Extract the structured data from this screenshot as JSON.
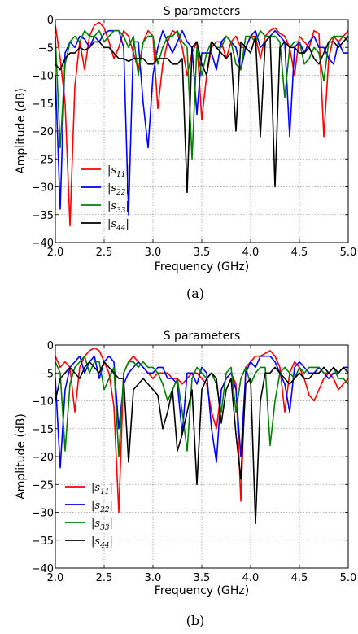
{
  "chart_data": [
    {
      "type": "line",
      "title": "S parameters",
      "xlabel": "Frequency (GHz)",
      "ylabel": "Amplitude (dB)",
      "xlim": [
        2.0,
        5.0
      ],
      "ylim": [
        -40,
        0
      ],
      "xticks": [
        "2.0",
        "2.5",
        "3.0",
        "3.5",
        "4.0",
        "4.5",
        "5.0"
      ],
      "yticks": [
        "0",
        "−5",
        "−10",
        "−15",
        "−20",
        "−25",
        "−30",
        "−35",
        "−40"
      ],
      "grid": true,
      "legend_position": "lower-left",
      "caption": "(a)",
      "series": [
        {
          "name": "|s11|",
          "color": "#ff0000",
          "x": [
            2.0,
            2.05,
            2.1,
            2.15,
            2.2,
            2.25,
            2.3,
            2.35,
            2.4,
            2.45,
            2.5,
            2.55,
            2.6,
            2.65,
            2.7,
            2.75,
            2.8,
            2.85,
            2.9,
            2.95,
            3.0,
            3.05,
            3.1,
            3.15,
            3.2,
            3.25,
            3.3,
            3.35,
            3.4,
            3.45,
            3.5,
            3.55,
            3.6,
            3.65,
            3.7,
            3.75,
            3.8,
            3.85,
            3.9,
            3.95,
            4.0,
            4.05,
            4.1,
            4.15,
            4.2,
            4.25,
            4.3,
            4.35,
            4.4,
            4.45,
            4.5,
            4.55,
            4.6,
            4.65,
            4.7,
            4.75,
            4.8,
            4.85,
            4.9,
            4.95,
            5.0
          ],
          "y": [
            -1,
            -7,
            -15,
            -37,
            -12,
            -4,
            -9,
            -3,
            -1,
            -0.5,
            -1.5,
            -4,
            -7,
            -5,
            -2,
            -3,
            -6,
            -9,
            -4,
            -2,
            -3,
            -16,
            -8,
            -4,
            -2,
            -2.5,
            -5,
            -10,
            -6,
            -4,
            -18,
            -10,
            -5,
            -4,
            -4,
            -7,
            -4,
            -3,
            -5,
            -5,
            -3,
            -3,
            -7,
            -3,
            -2,
            -1.5,
            -2.5,
            -3,
            -5,
            -10,
            -3,
            -4,
            -5,
            -2,
            -2.5,
            -21,
            -7,
            -3,
            -4,
            -3,
            -2
          ]
        },
        {
          "name": "|s22|",
          "color": "#0000ff",
          "x": [
            2.0,
            2.05,
            2.1,
            2.15,
            2.2,
            2.25,
            2.3,
            2.35,
            2.4,
            2.45,
            2.5,
            2.55,
            2.6,
            2.65,
            2.7,
            2.75,
            2.8,
            2.85,
            2.9,
            2.95,
            3.0,
            3.05,
            3.1,
            3.15,
            3.2,
            3.25,
            3.3,
            3.35,
            3.4,
            3.45,
            3.5,
            3.55,
            3.6,
            3.65,
            3.7,
            3.75,
            3.8,
            3.85,
            3.9,
            3.95,
            4.0,
            4.05,
            4.1,
            4.15,
            4.2,
            4.25,
            4.3,
            4.35,
            4.4,
            4.45,
            4.5,
            4.55,
            4.6,
            4.65,
            4.7,
            4.75,
            4.8,
            4.85,
            4.9,
            4.95,
            5.0
          ],
          "y": [
            -10,
            -34,
            -6,
            -4,
            -5,
            -3,
            -3.5,
            -5,
            -3,
            -4,
            -2.5,
            -2,
            -2,
            -2,
            -5,
            -35,
            -4,
            -4,
            -15,
            -23,
            -10,
            -5,
            -2,
            -4,
            -6,
            -4,
            -2,
            -4,
            -5,
            -17,
            -6,
            -6,
            -6,
            -9,
            -4,
            -3,
            -4,
            -5,
            -9,
            -5,
            -3,
            -2,
            -5,
            -4,
            -3,
            -2,
            -3,
            -4,
            -21,
            -5,
            -4,
            -6,
            -4,
            -3,
            -5,
            -5,
            -7,
            -8,
            -4,
            -6,
            -6
          ]
        },
        {
          "name": "|s33|",
          "color": "#008000",
          "x": [
            2.0,
            2.05,
            2.1,
            2.15,
            2.2,
            2.25,
            2.3,
            2.35,
            2.4,
            2.45,
            2.5,
            2.55,
            2.6,
            2.65,
            2.7,
            2.75,
            2.8,
            2.85,
            2.9,
            2.95,
            3.0,
            3.05,
            3.1,
            3.15,
            3.2,
            3.25,
            3.3,
            3.35,
            3.4,
            3.45,
            3.5,
            3.55,
            3.6,
            3.65,
            3.7,
            3.75,
            3.8,
            3.85,
            3.9,
            3.95,
            4.0,
            4.05,
            4.1,
            4.15,
            4.2,
            4.25,
            4.3,
            4.35,
            4.4,
            4.45,
            4.5,
            4.55,
            4.6,
            4.65,
            4.7,
            4.75,
            4.8,
            4.85,
            4.9,
            4.95,
            5.0
          ],
          "y": [
            -3,
            -23,
            -8,
            -4,
            -3,
            -4,
            -2,
            -3,
            -3,
            -2,
            -4,
            -3,
            -2,
            -2,
            -3,
            -5,
            -3,
            -10,
            -4,
            -3,
            -3,
            -8,
            -5,
            -3,
            -3,
            -2,
            -4,
            -5,
            -25,
            -5,
            -10,
            -6,
            -4,
            -5,
            -5,
            -3,
            -4,
            -8,
            -9,
            -3,
            -3,
            -4,
            -2,
            -3,
            -3,
            -3,
            -4,
            -14,
            -5,
            -4,
            -4,
            -8,
            -7,
            -5,
            -6,
            -11,
            -4,
            -3,
            -3,
            -3,
            -4
          ]
        },
        {
          "name": "|s44|",
          "color": "#000000",
          "x": [
            2.0,
            2.05,
            2.1,
            2.15,
            2.2,
            2.25,
            2.3,
            2.35,
            2.4,
            2.45,
            2.5,
            2.55,
            2.6,
            2.65,
            2.7,
            2.75,
            2.8,
            2.85,
            2.9,
            2.95,
            3.0,
            3.05,
            3.1,
            3.15,
            3.2,
            3.25,
            3.3,
            3.35,
            3.4,
            3.45,
            3.5,
            3.55,
            3.6,
            3.65,
            3.7,
            3.75,
            3.8,
            3.85,
            3.9,
            3.95,
            4.0,
            4.05,
            4.1,
            4.15,
            4.2,
            4.25,
            4.3,
            4.35,
            4.4,
            4.45,
            4.5,
            4.55,
            4.6,
            4.65,
            4.7,
            4.75,
            4.8,
            4.85,
            4.9,
            4.95,
            5.0
          ],
          "y": [
            -8,
            -9,
            -7,
            -6,
            -6,
            -5,
            -5.5,
            -5,
            -4,
            -4,
            -5,
            -5,
            -6,
            -7,
            -7,
            -7.5,
            -7,
            -7,
            -7,
            -8,
            -8,
            -7,
            -7,
            -7,
            -8,
            -8,
            -7,
            -31,
            -5,
            -4,
            -8,
            -10,
            -4,
            -5,
            -6,
            -7,
            -6,
            -20,
            -4,
            -5,
            -6,
            -3,
            -21,
            -4,
            -3,
            -30,
            -5,
            -4,
            -5,
            -5,
            -6,
            -6,
            -5,
            -7,
            -8,
            -6,
            -4,
            -4,
            -5,
            -4,
            -3
          ]
        }
      ]
    },
    {
      "type": "line",
      "title": "S parameters",
      "xlabel": "Frequency (GHz)",
      "ylabel": "Amplitude (dB)",
      "xlim": [
        2.0,
        5.0
      ],
      "ylim": [
        -40,
        0
      ],
      "xticks": [
        "2.0",
        "2.5",
        "3.0",
        "3.5",
        "4.0",
        "4.5",
        "5.0"
      ],
      "yticks": [
        "0",
        "−5",
        "−10",
        "−15",
        "−20",
        "−25",
        "−30",
        "−35",
        "−40"
      ],
      "grid": true,
      "legend_position": "lower-left",
      "caption": "(b)",
      "series": [
        {
          "name": "|s11|",
          "color": "#ff0000",
          "x": [
            2.0,
            2.05,
            2.1,
            2.15,
            2.2,
            2.25,
            2.3,
            2.35,
            2.4,
            2.45,
            2.5,
            2.55,
            2.6,
            2.65,
            2.7,
            2.75,
            2.8,
            2.85,
            2.9,
            2.95,
            3.0,
            3.05,
            3.1,
            3.15,
            3.2,
            3.25,
            3.3,
            3.35,
            3.4,
            3.45,
            3.5,
            3.55,
            3.6,
            3.65,
            3.7,
            3.75,
            3.8,
            3.85,
            3.9,
            3.95,
            4.0,
            4.05,
            4.1,
            4.15,
            4.2,
            4.25,
            4.3,
            4.35,
            4.4,
            4.45,
            4.5,
            4.55,
            4.6,
            4.65,
            4.7,
            4.75,
            4.8,
            4.85,
            4.9,
            4.95,
            5.0
          ],
          "y": [
            -2,
            -4,
            -3,
            -4,
            -12,
            -4,
            -2,
            -1,
            -0.5,
            -1,
            -3,
            -5,
            -11,
            -30,
            -5,
            -3,
            -2,
            -3,
            -4,
            -5,
            -6,
            -5,
            -5,
            -5,
            -6,
            -6,
            -7,
            -6,
            -5,
            -5,
            -6,
            -7,
            -12,
            -15,
            -8,
            -6,
            -5,
            -7,
            -28,
            -4,
            -3,
            -2,
            -2,
            -1.5,
            -1,
            -2,
            -4,
            -12,
            -5,
            -3,
            -4,
            -6,
            -9,
            -10,
            -8,
            -6,
            -5,
            -6,
            -8,
            -7,
            -6
          ]
        },
        {
          "name": "|s22|",
          "color": "#0000ff",
          "x": [
            2.0,
            2.05,
            2.1,
            2.15,
            2.2,
            2.25,
            2.3,
            2.35,
            2.4,
            2.45,
            2.5,
            2.55,
            2.6,
            2.65,
            2.7,
            2.75,
            2.8,
            2.85,
            2.9,
            2.95,
            3.0,
            3.05,
            3.1,
            3.15,
            3.2,
            3.25,
            3.3,
            3.35,
            3.4,
            3.45,
            3.5,
            3.55,
            3.6,
            3.65,
            3.7,
            3.75,
            3.8,
            3.85,
            3.9,
            3.95,
            4.0,
            4.05,
            4.1,
            4.15,
            4.2,
            4.25,
            4.3,
            4.35,
            4.4,
            4.45,
            4.5,
            4.55,
            4.6,
            4.65,
            4.7,
            4.75,
            4.8,
            4.85,
            4.9,
            4.95,
            5.0
          ],
          "y": [
            -6,
            -22,
            -8,
            -4,
            -3,
            -2,
            -5,
            -3,
            -2,
            -6,
            -3,
            -2,
            -3,
            -15,
            -7,
            -5,
            -4,
            -3,
            -4,
            -5,
            -5,
            -4,
            -4,
            -6,
            -6,
            -7,
            -16,
            -5,
            -5,
            -7,
            -4,
            -5,
            -15,
            -21,
            -8,
            -6,
            -5,
            -8,
            -20,
            -5,
            -3,
            -4,
            -2,
            -2,
            -2,
            -3,
            -5,
            -7,
            -12,
            -4,
            -3,
            -4,
            -5,
            -5,
            -4,
            -5,
            -6,
            -5,
            -5,
            -4,
            -4
          ]
        },
        {
          "name": "|s33|",
          "color": "#008000",
          "x": [
            2.0,
            2.05,
            2.1,
            2.15,
            2.2,
            2.25,
            2.3,
            2.35,
            2.4,
            2.45,
            2.5,
            2.55,
            2.6,
            2.65,
            2.7,
            2.75,
            2.8,
            2.85,
            2.9,
            2.95,
            3.0,
            3.05,
            3.1,
            3.15,
            3.2,
            3.25,
            3.3,
            3.35,
            3.4,
            3.45,
            3.5,
            3.55,
            3.6,
            3.65,
            3.7,
            3.75,
            3.8,
            3.85,
            3.9,
            3.95,
            4.0,
            4.05,
            4.1,
            4.15,
            4.2,
            4.25,
            4.3,
            4.35,
            4.4,
            4.45,
            4.5,
            4.55,
            4.6,
            4.65,
            4.7,
            4.75,
            4.8,
            4.85,
            4.9,
            4.95,
            5.0
          ],
          "y": [
            -3,
            -5,
            -19,
            -7,
            -4,
            -3,
            -2,
            -5,
            -3,
            -3,
            -8,
            -6,
            -4,
            -20,
            -5,
            -3,
            -3,
            -4,
            -3,
            -4,
            -4,
            -5,
            -7,
            -10,
            -8,
            -6,
            -12,
            -19,
            -6,
            -4,
            -5,
            -6,
            -5,
            -7,
            -12,
            -5,
            -4,
            -12,
            -6,
            -4,
            -7,
            -5,
            -4,
            -4,
            -18,
            -10,
            -5,
            -4,
            -5,
            -6,
            -4,
            -5,
            -4,
            -4,
            -4,
            -5,
            -5,
            -4,
            -6,
            -6,
            -7
          ]
        },
        {
          "name": "|s44|",
          "color": "#000000",
          "x": [
            2.0,
            2.05,
            2.1,
            2.15,
            2.2,
            2.25,
            2.3,
            2.35,
            2.4,
            2.45,
            2.5,
            2.55,
            2.6,
            2.65,
            2.7,
            2.75,
            2.8,
            2.85,
            2.9,
            2.95,
            3.0,
            3.05,
            3.1,
            3.15,
            3.2,
            3.25,
            3.3,
            3.35,
            3.4,
            3.45,
            3.5,
            3.55,
            3.6,
            3.65,
            3.7,
            3.75,
            3.8,
            3.85,
            3.9,
            3.95,
            4.0,
            4.05,
            4.1,
            4.15,
            4.2,
            4.25,
            4.3,
            4.35,
            4.4,
            4.45,
            4.5,
            4.55,
            4.6,
            4.65,
            4.7,
            4.75,
            4.8,
            4.85,
            4.9,
            4.95,
            5.0
          ],
          "y": [
            -10,
            -6,
            -5,
            -4,
            -5,
            -6,
            -4,
            -3,
            -4,
            -5,
            -3,
            -4,
            -5,
            -6,
            -6,
            -21,
            -8,
            -7,
            -6,
            -7,
            -8,
            -9,
            -15,
            -12,
            -8,
            -19,
            -16,
            -12,
            -8,
            -25,
            -8,
            -6,
            -5,
            -6,
            -14,
            -8,
            -6,
            -16,
            -24,
            -7,
            -6,
            -32,
            -10,
            -5,
            -5,
            -4,
            -5,
            -6,
            -7,
            -6,
            -5,
            -6,
            -6,
            -5,
            -5,
            -4,
            -5,
            -4,
            -5,
            -4,
            -5
          ]
        }
      ]
    }
  ]
}
